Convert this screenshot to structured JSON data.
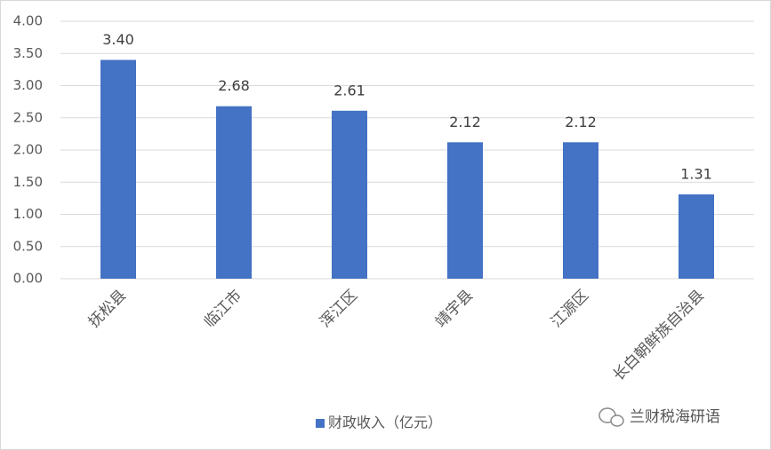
{
  "chart_data": {
    "type": "bar",
    "categories": [
      "抚松县",
      "临江市",
      "浑江区",
      "靖宇县",
      "江源区",
      "长白朝鲜族自治县"
    ],
    "series": [
      {
        "name": "财政收入（亿元）",
        "color": "#4472c4",
        "values": [
          3.4,
          2.68,
          2.61,
          2.12,
          2.12,
          1.31
        ],
        "value_labels": [
          "3.40",
          "2.68",
          "2.61",
          "2.12",
          "2.12",
          "1.31"
        ]
      }
    ],
    "ylim": [
      0,
      4
    ],
    "yticks": [
      {
        "value": 0,
        "label": "0.00"
      },
      {
        "value": 0.5,
        "label": "0.50"
      },
      {
        "value": 1,
        "label": "1.00"
      },
      {
        "value": 1.5,
        "label": "1.50"
      },
      {
        "value": 2,
        "label": "2.00"
      },
      {
        "value": 2.5,
        "label": "2.50"
      },
      {
        "value": 3,
        "label": "3.00"
      },
      {
        "value": 3.5,
        "label": "3.50"
      },
      {
        "value": 4,
        "label": "4.00"
      }
    ],
    "grid": true,
    "legend": "bottom"
  },
  "watermark": "兰财税海研语"
}
